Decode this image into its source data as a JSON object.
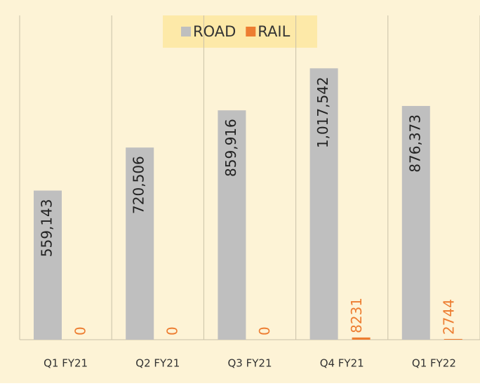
{
  "chart_data": {
    "type": "bar",
    "categories": [
      "Q1 FY21",
      "Q2 FY21",
      "Q3 FY21",
      "Q4 FY21",
      "Q1 FY22"
    ],
    "series": [
      {
        "name": "ROAD",
        "color": "#bfbfbf",
        "values": [
          559143,
          720506,
          859916,
          1017542,
          876373
        ],
        "value_labels": [
          "559,143",
          "720,506",
          "859,916",
          "1,017,542",
          "876,373"
        ]
      },
      {
        "name": "RAIL",
        "color": "#ed7d31",
        "values": [
          0,
          0,
          0,
          8231,
          2744
        ]
      }
    ],
    "ylim": [
      0,
      1200000
    ]
  }
}
